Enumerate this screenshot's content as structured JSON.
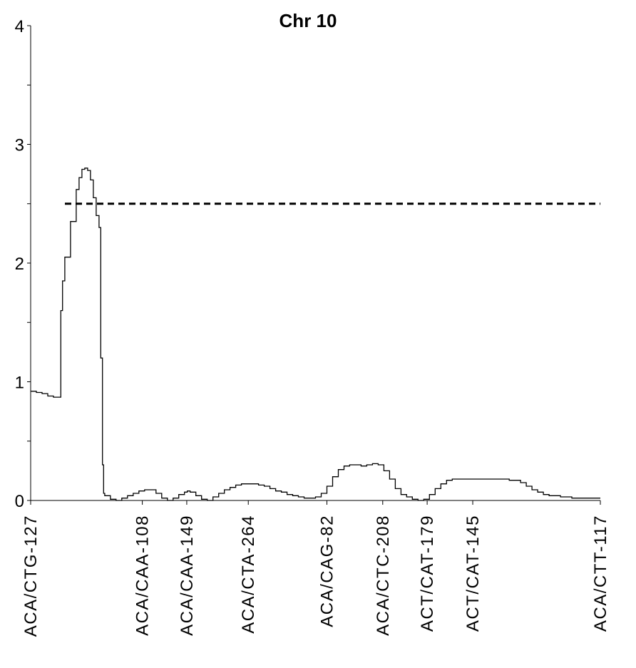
{
  "chart_data": {
    "type": "line",
    "title": "Chr 10",
    "xlabel": "",
    "ylabel": "",
    "ylim": [
      0,
      4
    ],
    "yticks": [
      0,
      1,
      2,
      3,
      4
    ],
    "ytick_labels": [
      "0",
      "1",
      "2",
      "3",
      "4"
    ],
    "xlim": [
      0,
      100
    ],
    "grid": false,
    "legend": "none",
    "threshold": 2.5,
    "markers": [
      {
        "label": "ACA/CTG-127",
        "x": 0
      },
      {
        "label": "ACA/CAA-108",
        "x": 19.6
      },
      {
        "label": "ACA/CAA-149",
        "x": 27.4
      },
      {
        "label": "ACA/CTA-264",
        "x": 38.2
      },
      {
        "label": "ACA/CAG-82",
        "x": 52.0
      },
      {
        "label": "ACA/CTC-208",
        "x": 61.8
      },
      {
        "label": "ACT/CAT-179",
        "x": 69.6
      },
      {
        "label": "ACT/CAT-145",
        "x": 77.6
      },
      {
        "label": "ACA/CTT-117",
        "x": 100
      }
    ],
    "series": [
      {
        "x": [
          0,
          1,
          2,
          3,
          4,
          5,
          5.3,
          5.6,
          6,
          7,
          8,
          8.5,
          9,
          9.5,
          10,
          10.5,
          11,
          11.5,
          12,
          12.3,
          12.6,
          12.8,
          13,
          14,
          15,
          16,
          17,
          18,
          19,
          20,
          21,
          22,
          23,
          24,
          25,
          26,
          27,
          27.5,
          28,
          29,
          30,
          31,
          32,
          33,
          34,
          35,
          36,
          37,
          38,
          39,
          40,
          41,
          42,
          43,
          44,
          45,
          46,
          47,
          48,
          49,
          50,
          51,
          52,
          53,
          54,
          55,
          56,
          57,
          58,
          59,
          60,
          61,
          62,
          63,
          64,
          65,
          66,
          67,
          68,
          69,
          70,
          71,
          72,
          73,
          74,
          75,
          76,
          77,
          78,
          80,
          82,
          84,
          86,
          87,
          88,
          89,
          90,
          91,
          92,
          93,
          94,
          95,
          96,
          97,
          98,
          99,
          100
        ],
        "values": [
          0.92,
          0.91,
          0.9,
          0.88,
          0.87,
          0.87,
          1.6,
          1.85,
          2.05,
          2.35,
          2.62,
          2.72,
          2.79,
          2.8,
          2.78,
          2.7,
          2.55,
          2.4,
          2.3,
          1.2,
          0.3,
          0.06,
          0.04,
          0.01,
          0.0,
          0.02,
          0.04,
          0.06,
          0.08,
          0.09,
          0.09,
          0.06,
          0.02,
          0.0,
          0.02,
          0.05,
          0.07,
          0.08,
          0.07,
          0.04,
          0.01,
          0.0,
          0.03,
          0.06,
          0.09,
          0.11,
          0.13,
          0.14,
          0.14,
          0.14,
          0.13,
          0.12,
          0.1,
          0.08,
          0.07,
          0.05,
          0.04,
          0.03,
          0.02,
          0.02,
          0.03,
          0.06,
          0.12,
          0.2,
          0.26,
          0.29,
          0.3,
          0.3,
          0.29,
          0.3,
          0.31,
          0.3,
          0.25,
          0.18,
          0.1,
          0.05,
          0.03,
          0.01,
          0.0,
          0.01,
          0.05,
          0.1,
          0.14,
          0.17,
          0.18,
          0.18,
          0.18,
          0.18,
          0.18,
          0.18,
          0.18,
          0.17,
          0.15,
          0.12,
          0.09,
          0.07,
          0.05,
          0.04,
          0.04,
          0.03,
          0.03,
          0.02,
          0.02,
          0.02,
          0.02,
          0.02,
          0.02
        ]
      }
    ]
  },
  "colors": {
    "line": "#000000",
    "threshold": "#000000",
    "axis": "#000000",
    "background": "#ffffff"
  }
}
